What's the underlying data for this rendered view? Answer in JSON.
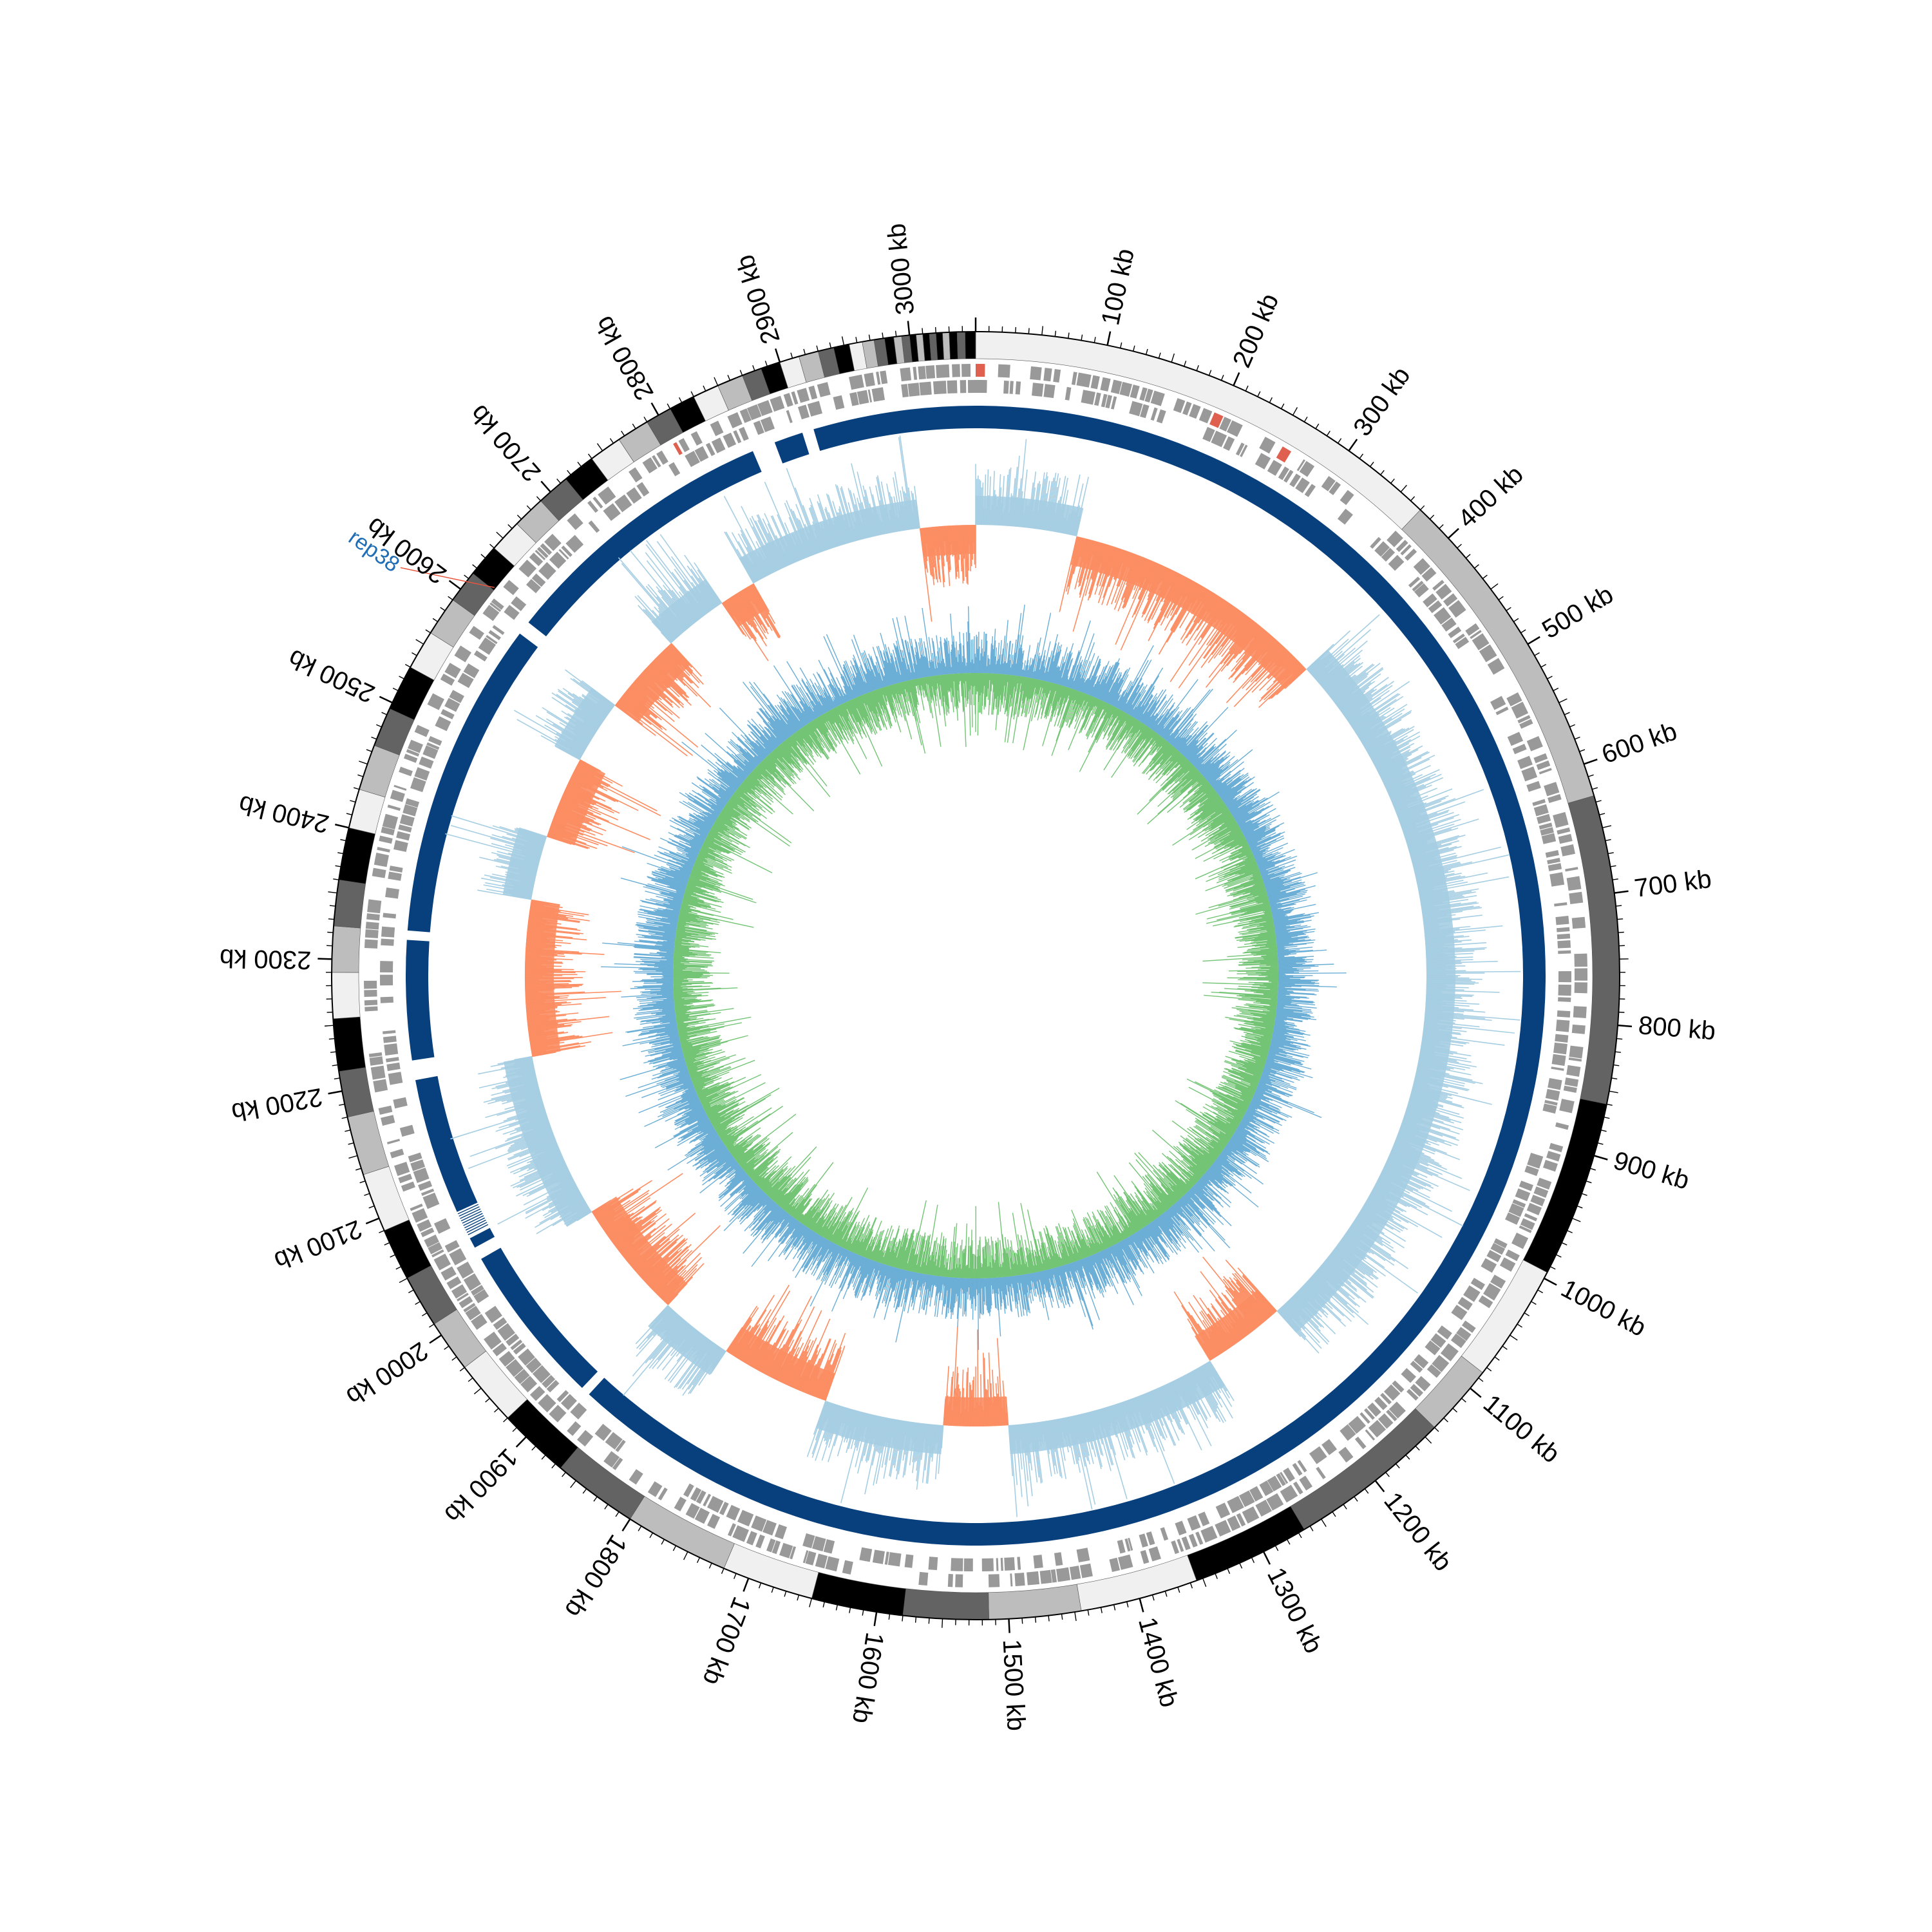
{
  "chart_data": {
    "type": "circular-genome",
    "genome_length_kb": 3050,
    "axis": {
      "unit": "kb",
      "major_ticks_kb": [
        100,
        200,
        300,
        400,
        500,
        600,
        700,
        800,
        900,
        1000,
        1100,
        1200,
        1300,
        1400,
        1500,
        1600,
        1700,
        1800,
        1900,
        2000,
        2100,
        2200,
        2300,
        2400,
        2500,
        2600,
        2700,
        2800,
        2900,
        3000
      ],
      "tick_labels": [
        "100 kb",
        "200 kb",
        "300 kb",
        "400 kb",
        "500 kb",
        "600 kb",
        "700 kb",
        "800 kb",
        "900 kb",
        "1000 kb",
        "1100 kb",
        "1200 kb",
        "1300 kb",
        "1400 kb",
        "1500 kb",
        "1600 kb",
        "1700 kb",
        "1800 kb",
        "1900 kb",
        "2000 kb",
        "2100 kb",
        "2200 kb",
        "2300 kb",
        "2400 kb",
        "2500 kb",
        "2600 kb",
        "2700 kb",
        "2800 kb",
        "2900 kb",
        "3000 kb"
      ],
      "minor_tick_interval_kb": 10
    },
    "contig_track": {
      "colors": [
        "#f0f0f0",
        "#bdbdbd",
        "#636363",
        "#000000"
      ],
      "segments_kb": [
        [
          0,
          370,
          "#f0f0f0"
        ],
        [
          370,
          625,
          "#bdbdbd"
        ],
        [
          625,
          860,
          "#636363"
        ],
        [
          860,
          995,
          "#000000"
        ],
        [
          995,
          1085,
          "#f0f0f0"
        ],
        [
          1085,
          1140,
          "#bdbdbd"
        ],
        [
          1140,
          1265,
          "#636363"
        ],
        [
          1265,
          1355,
          "#000000"
        ],
        [
          1355,
          1445,
          "#f0f0f0"
        ],
        [
          1445,
          1515,
          "#bdbdbd"
        ],
        [
          1515,
          1580,
          "#636363"
        ],
        [
          1580,
          1650,
          "#000000"
        ],
        [
          1650,
          1720,
          "#f0f0f0"
        ],
        [
          1720,
          1800,
          "#bdbdbd"
        ],
        [
          1800,
          1865,
          "#636363"
        ],
        [
          1865,
          1920,
          "#000000"
        ],
        [
          1920,
          1970,
          "#f0f0f0"
        ],
        [
          1970,
          2010,
          "#bdbdbd"
        ],
        [
          2010,
          2050,
          "#636363"
        ],
        [
          2050,
          2090,
          "#000000"
        ],
        [
          2090,
          2135,
          "#f0f0f0"
        ],
        [
          2135,
          2180,
          "#bdbdbd"
        ],
        [
          2180,
          2215,
          "#636363"
        ],
        [
          2215,
          2255,
          "#000000"
        ],
        [
          2255,
          2290,
          "#f0f0f0"
        ],
        [
          2290,
          2325,
          "#bdbdbd"
        ],
        [
          2325,
          2360,
          "#636363"
        ],
        [
          2360,
          2400,
          "#000000"
        ],
        [
          2400,
          2430,
          "#f0f0f0"
        ],
        [
          2430,
          2465,
          "#bdbdbd"
        ],
        [
          2465,
          2495,
          "#636363"
        ],
        [
          2495,
          2530,
          "#000000"
        ],
        [
          2530,
          2560,
          "#f0f0f0"
        ],
        [
          2560,
          2590,
          "#bdbdbd"
        ],
        [
          2590,
          2615,
          "#636363"
        ],
        [
          2615,
          2640,
          "#000000"
        ],
        [
          2640,
          2665,
          "#f0f0f0"
        ],
        [
          2665,
          2690,
          "#bdbdbd"
        ],
        [
          2690,
          2715,
          "#636363"
        ],
        [
          2715,
          2740,
          "#000000"
        ],
        [
          2740,
          2765,
          "#f0f0f0"
        ],
        [
          2765,
          2790,
          "#bdbdbd"
        ],
        [
          2790,
          2810,
          "#636363"
        ],
        [
          2810,
          2830,
          "#000000"
        ],
        [
          2830,
          2850,
          "#f0f0f0"
        ],
        [
          2850,
          2870,
          "#bdbdbd"
        ],
        [
          2870,
          2885,
          "#636363"
        ],
        [
          2885,
          2900,
          "#000000"
        ],
        [
          2900,
          2915,
          "#f0f0f0"
        ],
        [
          2915,
          2930,
          "#bdbdbd"
        ],
        [
          2930,
          2942,
          "#636363"
        ],
        [
          2942,
          2954,
          "#000000"
        ],
        [
          2954,
          2964,
          "#f0f0f0"
        ],
        [
          2964,
          2973,
          "#bdbdbd"
        ],
        [
          2973,
          2981,
          "#636363"
        ],
        [
          2981,
          2988,
          "#000000"
        ],
        [
          2988,
          2994,
          "#bdbdbd"
        ],
        [
          2994,
          3000,
          "#636363"
        ],
        [
          3000,
          3005,
          "#000000"
        ],
        [
          3005,
          3010,
          "#bdbdbd"
        ],
        [
          3010,
          3015,
          "#000000"
        ],
        [
          3015,
          3020,
          "#636363"
        ],
        [
          3020,
          3025,
          "#000000"
        ],
        [
          3025,
          3030,
          "#bdbdbd"
        ],
        [
          3030,
          3036,
          "#000000"
        ],
        [
          3036,
          3042,
          "#636363"
        ],
        [
          3042,
          3050,
          "#000000"
        ]
      ]
    },
    "gene_tracks": {
      "color": "#999999",
      "highlight_color": "#e06050",
      "strands": 2
    },
    "alignment_track": {
      "color": "#08407e",
      "gaps_kb": [
        [
          2855,
          2875
        ],
        [
          2900,
          2910
        ],
        [
          2600,
          2612
        ],
        [
          2318,
          2326
        ],
        [
          2198,
          2215
        ],
        [
          2055,
          2080
        ],
        [
          2035,
          2046
        ],
        [
          1887,
          1895
        ]
      ]
    },
    "gc_content_track": {
      "positive_color": "#a6cee3",
      "negative_color": "#fc8d62",
      "segments_kb": [
        [
          0,
          90,
          "#a6cee3"
        ],
        [
          90,
          110,
          "#a6cee3"
        ],
        [
          110,
          400,
          "#fc8d62"
        ],
        [
          400,
          1170,
          "#a6cee3"
        ],
        [
          1170,
          1260,
          "#fc8d62"
        ],
        [
          1260,
          1490,
          "#a6cee3"
        ],
        [
          1490,
          1560,
          "#fc8d62"
        ],
        [
          1560,
          1690,
          "#a6cee3"
        ],
        [
          1690,
          1810,
          "#fc8d62"
        ],
        [
          1810,
          1890,
          "#a6cee3"
        ],
        [
          1890,
          2020,
          "#fc8d62"
        ],
        [
          2020,
          2200,
          "#a6cee3"
        ],
        [
          2200,
          2370,
          "#fc8d62"
        ],
        [
          2370,
          2440,
          "#a6cee3"
        ],
        [
          2440,
          2530,
          "#fc8d62"
        ],
        [
          2530,
          2600,
          "#a6cee3"
        ],
        [
          2600,
          2690,
          "#fc8d62"
        ],
        [
          2690,
          2760,
          "#a6cee3"
        ],
        [
          2760,
          2800,
          "#fc8d62"
        ],
        [
          2800,
          2990,
          "#a6cee3"
        ],
        [
          2990,
          3050,
          "#fc8d62"
        ]
      ]
    },
    "gc_skew_track": {
      "positive_color": "#6baed6",
      "negative_color": "#74c476"
    },
    "annotations": [
      {
        "label": "rep38",
        "position_kb": 2617,
        "label_color": "#1f6db5",
        "line_color": "#e8553e"
      }
    ]
  }
}
